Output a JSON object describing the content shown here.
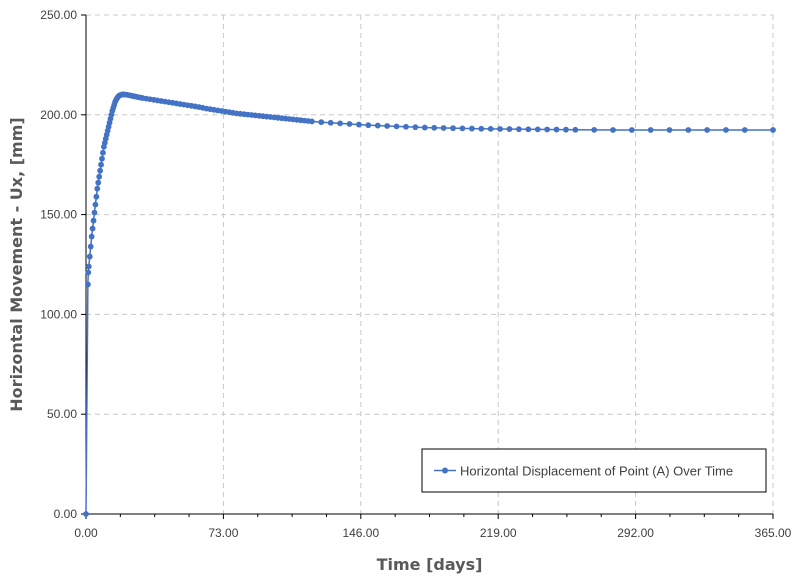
{
  "chart_data": {
    "type": "line",
    "title": "",
    "xlabel": "Time [days]",
    "ylabel": "Horizontal Movement - Ux, [mm]",
    "xlim": [
      0,
      365
    ],
    "ylim": [
      0,
      250
    ],
    "x_ticks": [
      "0.00",
      "73.00",
      "146.00",
      "219.00",
      "292.00",
      "365.00"
    ],
    "y_ticks": [
      "0.00",
      "50.00",
      "100.00",
      "150.00",
      "200.00",
      "250.00"
    ],
    "grid": true,
    "legend_position": "bottom-right",
    "colors": {
      "series": "#4472C4",
      "grid": "#c8c8c8",
      "axis": "#000000"
    },
    "series": [
      {
        "name": "Horizontal Displacement of Point (A) Over Time",
        "marker": "circle",
        "x": [
          0,
          1,
          1.2,
          1.5,
          2,
          2.5,
          3,
          3.5,
          4,
          4.5,
          5,
          5.5,
          6,
          6.5,
          7,
          7.5,
          8,
          8.5,
          9,
          9.5,
          10,
          10.5,
          11,
          11.5,
          12,
          12.5,
          13,
          13.5,
          14,
          14.5,
          15,
          15.5,
          16,
          16.5,
          17,
          17.5,
          18,
          18.5,
          19,
          19.5,
          20,
          21,
          22,
          23,
          24,
          25,
          26,
          27,
          28,
          29,
          30,
          32,
          34,
          36,
          38,
          40,
          42,
          44,
          46,
          48,
          50,
          52,
          54,
          56,
          58,
          60,
          62,
          64,
          66,
          68,
          70,
          72,
          74,
          76,
          78,
          80,
          82,
          84,
          86,
          88,
          90,
          92,
          94,
          96,
          98,
          100,
          102,
          104,
          106,
          108,
          110,
          112,
          114,
          116,
          118,
          120,
          125,
          130,
          135,
          140,
          145,
          150,
          155,
          160,
          165,
          170,
          175,
          180,
          185,
          190,
          195,
          200,
          205,
          210,
          215,
          220,
          225,
          230,
          235,
          240,
          245,
          250,
          255,
          260,
          270,
          280,
          290,
          300,
          310,
          320,
          330,
          340,
          350,
          365
        ],
        "y": [
          0,
          115,
          121,
          124,
          129,
          134,
          139,
          143,
          147,
          151,
          155,
          159,
          163,
          166,
          169,
          172,
          175,
          178,
          181,
          184,
          186,
          188,
          190,
          192,
          194,
          196,
          198,
          200,
          202,
          203.5,
          205,
          206.5,
          207.5,
          208.3,
          209,
          209.5,
          209.8,
          210,
          210.1,
          210.2,
          210.2,
          210.1,
          210,
          209.8,
          209.6,
          209.4,
          209.2,
          209,
          208.8,
          208.6,
          208.4,
          208.1,
          207.8,
          207.5,
          207.2,
          206.9,
          206.6,
          206.3,
          206,
          205.7,
          205.4,
          205.1,
          204.8,
          204.5,
          204.2,
          203.9,
          203.5,
          203.1,
          202.8,
          202.5,
          202.2,
          201.9,
          201.6,
          201.3,
          201,
          200.7,
          200.5,
          200.3,
          200.1,
          199.9,
          199.7,
          199.5,
          199.3,
          199.1,
          198.9,
          198.7,
          198.5,
          198.3,
          198.1,
          197.9,
          197.7,
          197.5,
          197.3,
          197.1,
          196.9,
          196.7,
          196.3,
          196,
          195.7,
          195.4,
          195.1,
          194.8,
          194.6,
          194.4,
          194.2,
          194,
          193.8,
          193.6,
          193.5,
          193.4,
          193.3,
          193.2,
          193.1,
          193,
          192.95,
          192.9,
          192.85,
          192.8,
          192.75,
          192.7,
          192.65,
          192.6,
          192.55,
          192.5,
          192.45,
          192.4,
          192.4,
          192.4,
          192.4,
          192.4,
          192.4,
          192.4,
          192.4,
          192.4
        ]
      }
    ]
  }
}
